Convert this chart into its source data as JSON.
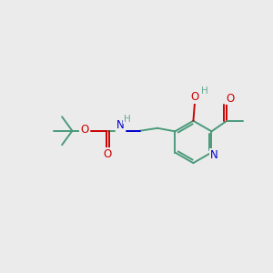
{
  "bg_color": "#ebebeb",
  "atom_colors": {
    "C": "#4a9a7a",
    "N": "#0000cc",
    "O": "#cc0000",
    "H": "#6aaa96"
  },
  "bond_color": "#4a9a7a",
  "figsize": [
    3.0,
    3.0
  ],
  "dpi": 100,
  "xlim": [
    0,
    10
  ],
  "ylim": [
    0,
    10
  ]
}
